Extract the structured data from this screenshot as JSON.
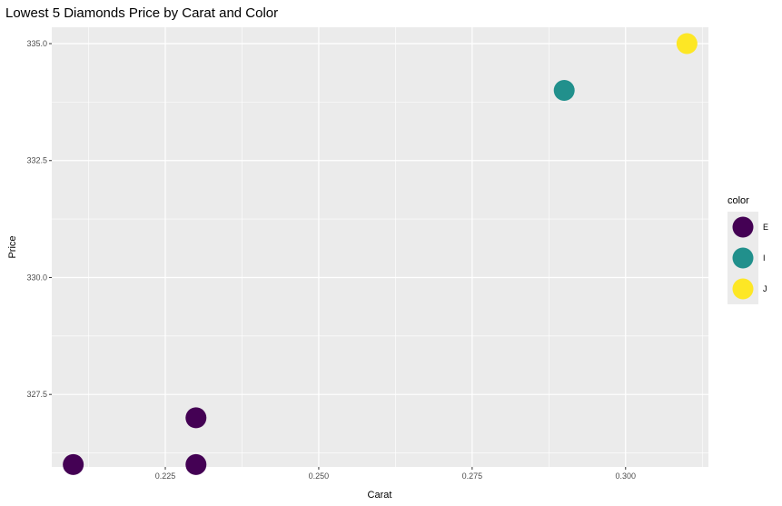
{
  "chart_data": {
    "type": "scatter",
    "title": "Lowest 5 Diamonds Price by Carat and Color",
    "xlabel": "Carat",
    "ylabel": "Price",
    "xlim": [
      0.2065,
      0.3135
    ],
    "ylim": [
      325.95,
      335.35
    ],
    "x_ticks": [
      {
        "value": 0.225,
        "label": "0.225"
      },
      {
        "value": 0.25,
        "label": "0.250"
      },
      {
        "value": 0.275,
        "label": "0.275"
      },
      {
        "value": 0.3,
        "label": "0.300"
      }
    ],
    "y_ticks": [
      {
        "value": 327.5,
        "label": "327.5"
      },
      {
        "value": 330.0,
        "label": "330.0"
      },
      {
        "value": 332.5,
        "label": "332.5"
      },
      {
        "value": 335.0,
        "label": "335.0"
      }
    ],
    "grid": true,
    "legend": {
      "title": "color",
      "position": "right",
      "entries": [
        {
          "label": "E",
          "color": "#440154"
        },
        {
          "label": "I",
          "color": "#21908C"
        },
        {
          "label": "J",
          "color": "#FDE725"
        }
      ]
    },
    "points": [
      {
        "x": 0.21,
        "y": 326,
        "group": "E"
      },
      {
        "x": 0.23,
        "y": 327,
        "group": "E"
      },
      {
        "x": 0.23,
        "y": 326,
        "group": "E"
      },
      {
        "x": 0.29,
        "y": 334,
        "group": "I"
      },
      {
        "x": 0.31,
        "y": 335,
        "group": "J"
      }
    ],
    "panel_color": "#EBEBEB",
    "grid_color": "#FFFFFF"
  }
}
